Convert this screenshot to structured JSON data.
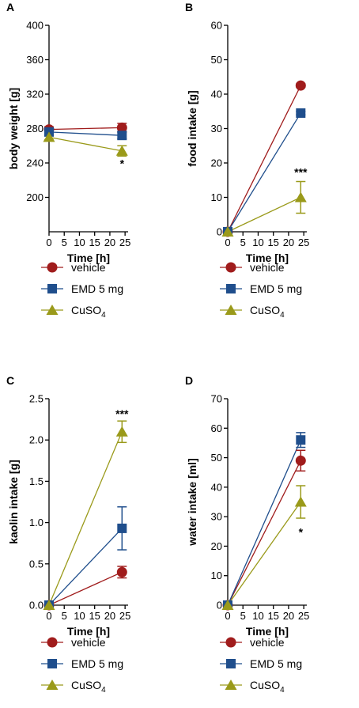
{
  "colors": {
    "vehicle": "#a01c1c",
    "emd": "#1f4e8c",
    "cuso4": "#9a9a1a"
  },
  "legend": {
    "vehicle": "vehicle",
    "emd": "EMD 5 mg",
    "cuso4_main": "CuSO",
    "cuso4_sub": "4"
  },
  "chart_data": [
    {
      "panel": "A",
      "type": "line",
      "xlabel": "Time [h]",
      "ylabel": "body weight [g]",
      "xlim": [
        0,
        26
      ],
      "ylim": [
        160,
        400
      ],
      "yticks": [
        200,
        240,
        280,
        320,
        360,
        400
      ],
      "ytick_labels": [
        "200",
        "240",
        "280",
        "320",
        "360",
        "400"
      ],
      "xticks": [
        0,
        5,
        10,
        15,
        20,
        25
      ],
      "xtick_labels": [
        "0",
        "5",
        "10",
        "15",
        "20",
        "25"
      ],
      "x": [
        0,
        24
      ],
      "series": [
        {
          "key": "vehicle",
          "marker": "circle",
          "values": [
            279,
            281
          ],
          "err": [
            3,
            5
          ]
        },
        {
          "key": "emd",
          "marker": "square",
          "values": [
            276,
            272
          ],
          "err": [
            3,
            4
          ]
        },
        {
          "key": "cuso4",
          "marker": "triangle",
          "values": [
            270,
            254
          ],
          "err": [
            3,
            6
          ]
        }
      ],
      "annotations": [
        {
          "text": "*",
          "x": 24,
          "y": 235
        }
      ]
    },
    {
      "panel": "B",
      "type": "line",
      "xlabel": "Time [h]",
      "ylabel": "food intake [g]",
      "xlim": [
        0,
        26
      ],
      "ylim": [
        0,
        60
      ],
      "yticks": [
        0,
        10,
        20,
        30,
        40,
        50,
        60
      ],
      "ytick_labels": [
        "0",
        "10",
        "20",
        "30",
        "40",
        "50",
        "60"
      ],
      "xticks": [
        0,
        5,
        10,
        15,
        20,
        25
      ],
      "xtick_labels": [
        "0",
        "5",
        "10",
        "15",
        "20",
        "25"
      ],
      "x": [
        0,
        24
      ],
      "series": [
        {
          "key": "vehicle",
          "marker": "circle",
          "values": [
            0,
            42.5
          ],
          "err": [
            0,
            0.5
          ]
        },
        {
          "key": "emd",
          "marker": "square",
          "values": [
            0,
            34.5
          ],
          "err": [
            0,
            0.5
          ]
        },
        {
          "key": "cuso4",
          "marker": "triangle",
          "values": [
            0,
            10
          ],
          "err": [
            0,
            4.6
          ]
        }
      ],
      "annotations": [
        {
          "text": "***",
          "x": 24,
          "y": 16.2
        }
      ]
    },
    {
      "panel": "C",
      "type": "line",
      "xlabel": "Time [h]",
      "ylabel": "kaolin intake [g]",
      "xlim": [
        0,
        26
      ],
      "ylim": [
        0,
        2.5
      ],
      "yticks": [
        0,
        0.5,
        1,
        1.5,
        2,
        2.5
      ],
      "ytick_labels": [
        "0.0",
        "0.5",
        "1.0",
        "1.5",
        "2.0",
        "2.5"
      ],
      "xticks": [
        0,
        5,
        10,
        15,
        20,
        25
      ],
      "xtick_labels": [
        "0",
        "5",
        "10",
        "15",
        "20",
        "25"
      ],
      "x": [
        0,
        24
      ],
      "series": [
        {
          "key": "vehicle",
          "marker": "circle",
          "values": [
            0,
            0.4
          ],
          "err": [
            0,
            0.07
          ]
        },
        {
          "key": "emd",
          "marker": "square",
          "values": [
            0,
            0.93
          ],
          "err": [
            0,
            0.26
          ]
        },
        {
          "key": "cuso4",
          "marker": "triangle",
          "values": [
            0,
            2.1
          ],
          "err": [
            0,
            0.13
          ]
        }
      ],
      "annotations": [
        {
          "text": "***",
          "x": 24,
          "y": 2.27
        }
      ]
    },
    {
      "panel": "D",
      "type": "line",
      "xlabel": "Time [h]",
      "ylabel": "water intake [ml]",
      "xlim": [
        0,
        26
      ],
      "ylim": [
        0,
        70
      ],
      "yticks": [
        0,
        10,
        20,
        30,
        40,
        50,
        60,
        70
      ],
      "ytick_labels": [
        "0",
        "10",
        "20",
        "30",
        "40",
        "50",
        "60",
        "70"
      ],
      "xticks": [
        0,
        5,
        10,
        15,
        20,
        25
      ],
      "xtick_labels": [
        "0",
        "5",
        "10",
        "15",
        "20",
        "25"
      ],
      "x": [
        0,
        24
      ],
      "series": [
        {
          "key": "vehicle",
          "marker": "circle",
          "values": [
            0,
            49
          ],
          "err": [
            0,
            3.5
          ]
        },
        {
          "key": "emd",
          "marker": "square",
          "values": [
            0,
            56
          ],
          "err": [
            0,
            2.5
          ]
        },
        {
          "key": "cuso4",
          "marker": "triangle",
          "values": [
            0,
            35
          ],
          "err": [
            0,
            5.5
          ]
        }
      ],
      "annotations": [
        {
          "text": "*",
          "x": 24,
          "y": 23.5
        }
      ]
    }
  ]
}
